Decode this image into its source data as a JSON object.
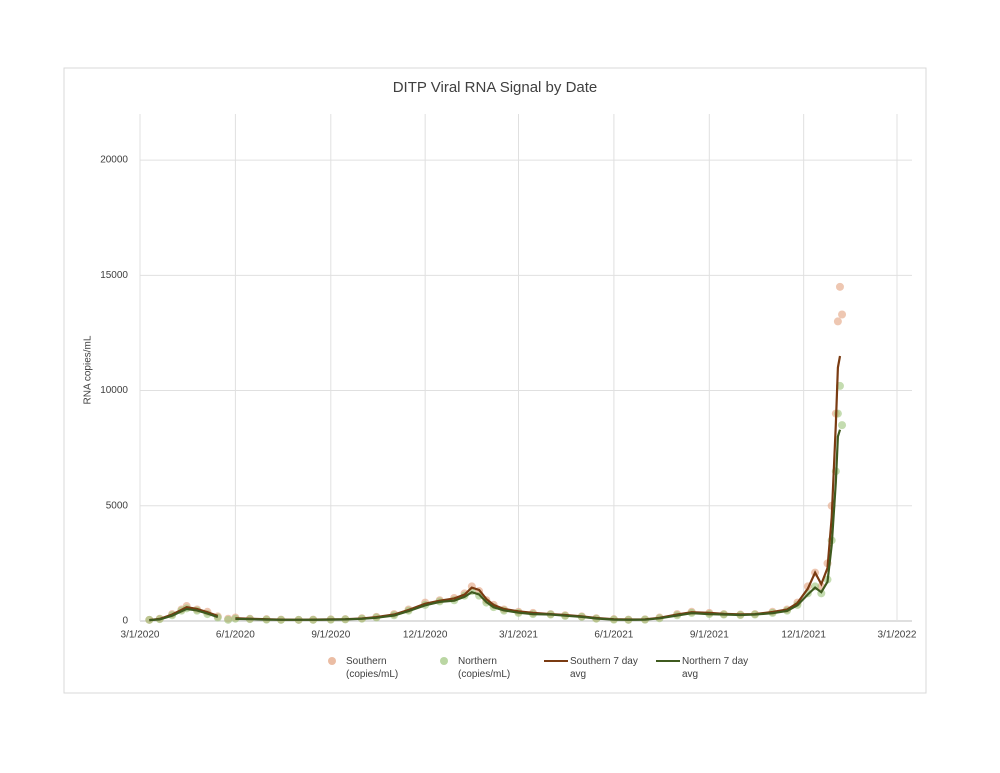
{
  "chart_data": {
    "type": "scatter",
    "title": "DITP Viral RNA Signal by Date",
    "y_label": "RNA copies/mL",
    "x": [
      "3/10/2020",
      "3/20/2020",
      "4/1/2020",
      "4/10/2020",
      "4/15/2020",
      "4/25/2020",
      "5/5/2020",
      "5/15/2020",
      "5/25/2020",
      "6/1/2020",
      "6/15/2020",
      "7/1/2020",
      "7/15/2020",
      "8/1/2020",
      "8/15/2020",
      "9/1/2020",
      "9/15/2020",
      "10/1/2020",
      "10/15/2020",
      "11/1/2020",
      "11/15/2020",
      "12/1/2020",
      "12/15/2020",
      "12/29/2020",
      "1/8/2021",
      "1/15/2021",
      "1/22/2021",
      "1/29/2021",
      "2/5/2021",
      "2/15/2021",
      "3/1/2021",
      "3/15/2021",
      "4/1/2021",
      "4/15/2021",
      "5/1/2021",
      "5/15/2021",
      "6/1/2021",
      "6/15/2021",
      "7/1/2021",
      "7/15/2021",
      "8/1/2021",
      "8/15/2021",
      "9/1/2021",
      "9/15/2021",
      "10/1/2021",
      "10/15/2021",
      "11/1/2021",
      "11/15/2021",
      "11/25/2021",
      "12/5/2021",
      "12/12/2021",
      "12/18/2021",
      "12/24/2021",
      "12/28/2021",
      "1/1/2022",
      "1/3/2022",
      "1/5/2022",
      "1/7/2022"
    ],
    "series": [
      {
        "name": "Southern (copies/mL)",
        "type": "scatter",
        "color": "#e3a17e",
        "values": [
          50,
          100,
          300,
          500,
          650,
          500,
          400,
          200,
          100,
          150,
          100,
          80,
          60,
          50,
          60,
          70,
          80,
          120,
          180,
          300,
          500,
          800,
          900,
          1000,
          1200,
          1500,
          1300,
          900,
          700,
          500,
          400,
          350,
          300,
          250,
          200,
          120,
          80,
          60,
          70,
          150,
          300,
          400,
          350,
          300,
          280,
          300,
          400,
          500,
          800,
          1500,
          2100,
          1500,
          2500,
          5000,
          9000,
          13000,
          14500,
          13300
        ]
      },
      {
        "name": "Northern (copies/mL)",
        "type": "scatter",
        "color": "#9cc47c",
        "values": [
          50,
          80,
          250,
          450,
          550,
          450,
          300,
          150,
          50,
          100,
          80,
          60,
          50,
          50,
          50,
          60,
          70,
          100,
          150,
          250,
          450,
          700,
          850,
          900,
          1100,
          1300,
          1100,
          800,
          600,
          450,
          350,
          300,
          280,
          220,
          180,
          100,
          60,
          50,
          60,
          120,
          250,
          350,
          300,
          280,
          260,
          280,
          350,
          450,
          700,
          1200,
          1500,
          1200,
          1800,
          3500,
          6500,
          9000,
          10200,
          8500
        ]
      },
      {
        "name": "Southern 7 day avg",
        "type": "line",
        "color": "#7a3b12",
        "values": [
          40,
          90,
          280,
          480,
          600,
          520,
          380,
          220,
          null,
          120,
          100,
          80,
          60,
          55,
          60,
          70,
          80,
          110,
          170,
          280,
          480,
          750,
          880,
          980,
          1150,
          1450,
          1350,
          950,
          700,
          520,
          420,
          350,
          300,
          260,
          200,
          130,
          80,
          65,
          70,
          140,
          280,
          380,
          350,
          310,
          290,
          300,
          390,
          500,
          780,
          1400,
          2100,
          1600,
          2300,
          4500,
          8500,
          11000,
          11500,
          null
        ]
      },
      {
        "name": "Northern 7 day avg",
        "type": "line",
        "color": "#3f5a1f",
        "values": [
          40,
          70,
          230,
          420,
          520,
          460,
          320,
          170,
          null,
          90,
          80,
          60,
          50,
          50,
          50,
          60,
          70,
          95,
          140,
          240,
          430,
          680,
          830,
          880,
          1050,
          1250,
          1150,
          820,
          600,
          460,
          360,
          300,
          280,
          230,
          180,
          110,
          60,
          50,
          55,
          115,
          240,
          340,
          300,
          280,
          260,
          280,
          340,
          440,
          680,
          1150,
          1450,
          1250,
          1700,
          3300,
          6000,
          8000,
          8300,
          null
        ]
      }
    ],
    "xlim": [
      "3/1/2020",
      "3/1/2022"
    ],
    "xticks": [
      "3/1/2020",
      "6/1/2020",
      "9/1/2020",
      "12/1/2020",
      "3/1/2021",
      "6/1/2021",
      "9/1/2021",
      "12/1/2021",
      "3/1/2022"
    ],
    "ylim": [
      0,
      22000
    ],
    "yticks": [
      0,
      5000,
      10000,
      15000,
      20000
    ],
    "grid": true,
    "legend": "bottom"
  }
}
